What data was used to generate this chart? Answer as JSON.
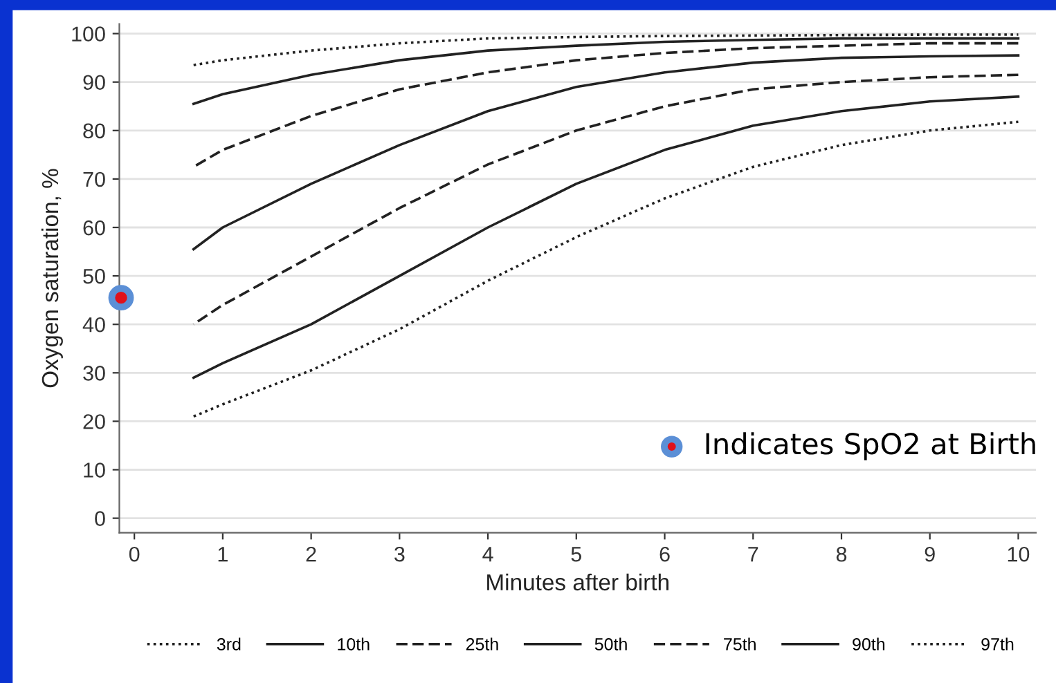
{
  "chart_data": {
    "type": "line",
    "xlabel": "Minutes after birth",
    "ylabel": "Oxygen saturation, %",
    "xlim": [
      -0.17,
      10.2
    ],
    "ylim": [
      -3,
      102
    ],
    "xticks": [
      0,
      1,
      2,
      3,
      4,
      5,
      6,
      7,
      8,
      9,
      10
    ],
    "yticks": [
      0,
      10,
      20,
      30,
      40,
      50,
      60,
      70,
      80,
      90,
      100
    ],
    "grid": "y",
    "legend": "bottom",
    "marker": "none",
    "x": [
      0.67,
      1,
      2,
      3,
      4,
      5,
      6,
      7,
      8,
      9,
      10
    ],
    "series": [
      {
        "name": "3rd",
        "color": "#222222",
        "line_style": "dotted",
        "values": [
          21,
          23.5,
          30.5,
          39,
          49,
          58,
          66,
          72.5,
          77,
          80,
          81.8
        ]
      },
      {
        "name": "10th",
        "color": "#222222",
        "line_style": "solid",
        "values": [
          29,
          32,
          40,
          50,
          60,
          69,
          76,
          81,
          84,
          86,
          87
        ]
      },
      {
        "name": "25th",
        "color": "#222222",
        "line_style": "dashed",
        "values": [
          40,
          44,
          54,
          64,
          73,
          80,
          85,
          88.5,
          90,
          91,
          91.5
        ]
      },
      {
        "name": "50th",
        "color": "#222222",
        "line_style": "solid",
        "values": [
          55.5,
          60,
          69,
          77,
          84,
          89,
          92,
          94,
          95,
          95.3,
          95.5
        ]
      },
      {
        "name": "75th",
        "color": "#222222",
        "line_style": "dashed",
        "values": [
          72.5,
          76,
          83,
          88.5,
          92,
          94.5,
          96,
          97,
          97.5,
          98,
          98
        ]
      },
      {
        "name": "90th",
        "color": "#222222",
        "line_style": "solid",
        "values": [
          85.5,
          87.5,
          91.5,
          94.5,
          96.5,
          97.5,
          98.3,
          98.7,
          99,
          99,
          99
        ]
      },
      {
        "name": "97th",
        "color": "#222222",
        "line_style": "dotted",
        "values": [
          93.5,
          94.5,
          96.5,
          98,
          99,
          99.3,
          99.5,
          99.6,
          99.7,
          99.8,
          99.8
        ]
      },
      {
        "name": "Indicates SpO2 at Birth",
        "type": "scatter",
        "marker": "circle",
        "color": "#5b8fd6",
        "x": [
          -0.15
        ],
        "values": [
          45.5
        ]
      }
    ]
  }
}
